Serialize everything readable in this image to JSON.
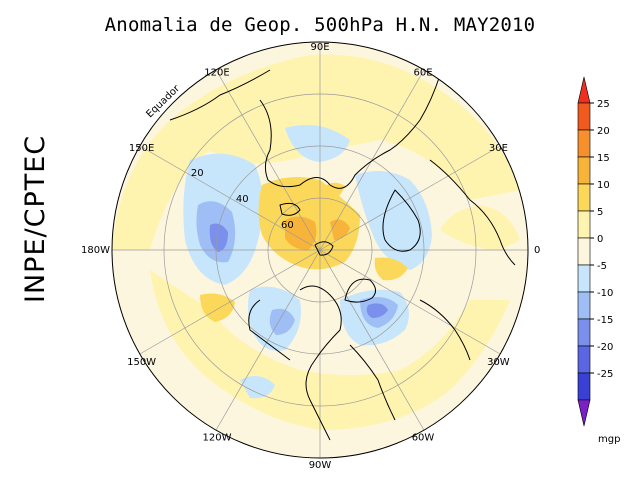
{
  "title": "Anomalia de Geop. 500hPa H.N. MAY2010",
  "side_label": "INPE/CPTEC",
  "longitude_labels": [
    {
      "text": "90E"
    },
    {
      "text": "60E"
    },
    {
      "text": "30E"
    },
    {
      "text": "0"
    },
    {
      "text": "30W"
    },
    {
      "text": "60W"
    },
    {
      "text": "90W"
    },
    {
      "text": "120W"
    },
    {
      "text": "150W"
    },
    {
      "text": "180W"
    },
    {
      "text": "150E"
    },
    {
      "text": "120E"
    }
  ],
  "latitude_labels": [
    "20",
    "40",
    "60"
  ],
  "equator_label": "Equador",
  "colorbar": {
    "unit": "mgp",
    "tick_labels": [
      "25",
      "20",
      "15",
      "10",
      "5",
      "0",
      "-5",
      "-10",
      "-15",
      "-20",
      "-25"
    ],
    "colors": [
      "#f05a1e",
      "#f5902c",
      "#f8b33a",
      "#fcd85a",
      "#fff3b0",
      "#fdf6df",
      "#c8e6fb",
      "#9fbef5",
      "#7a90ec",
      "#5a66e2",
      "#3a40d6"
    ],
    "extreme_colors": {
      "top": "#f0301e",
      "bottom": "#7a20c8"
    }
  },
  "anomaly_palette": {
    "neutral": "#fdf6df",
    "pos_light": "#fff3b0",
    "pos_mid": "#fcd85a",
    "pos_strong": "#f8b33a",
    "neg_light": "#c8e6fb",
    "neg_mid": "#9fbef5",
    "neg_strong": "#7a90ec"
  }
}
